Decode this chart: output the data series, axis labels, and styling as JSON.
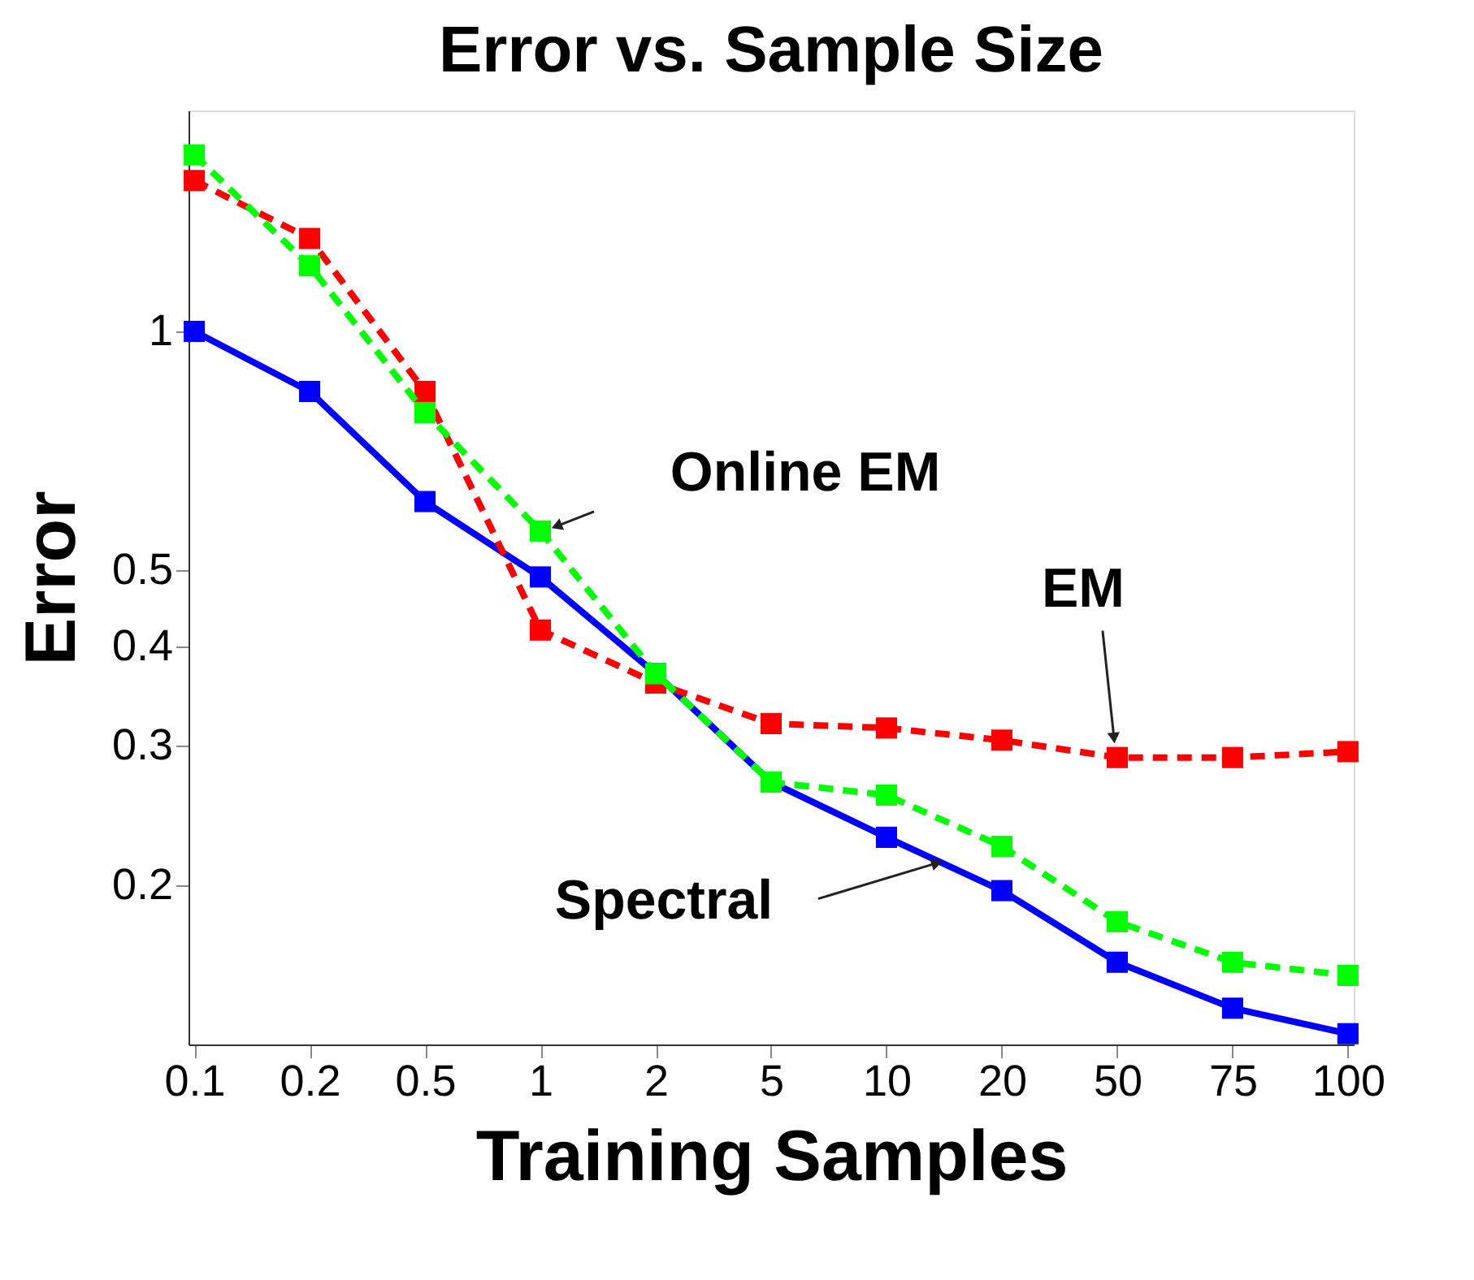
{
  "chart_data": {
    "type": "line",
    "title": "Error vs. Sample Size",
    "xlabel": "Training Samples",
    "ylabel": "Error",
    "categories": [
      "0.1",
      "0.2",
      "0.5",
      "1",
      "2",
      "5",
      "10",
      "20",
      "50",
      "75",
      "100"
    ],
    "series": [
      {
        "name": "Spectral",
        "color": "#0000ff",
        "line_style": "solid",
        "values": [
          1.0,
          0.84,
          0.61,
          0.49,
          0.37,
          0.27,
          0.23,
          0.197,
          0.16,
          0.14,
          0.13
        ]
      },
      {
        "name": "EM",
        "color": "#ff0000",
        "line_style": "dashed",
        "values": [
          1.55,
          1.31,
          0.84,
          0.42,
          0.36,
          0.32,
          0.316,
          0.305,
          0.29,
          0.29,
          0.295
        ]
      },
      {
        "name": "Online EM",
        "color": "#00ff00",
        "line_style": "dashed",
        "values": [
          1.67,
          1.21,
          0.79,
          0.56,
          0.37,
          0.27,
          0.26,
          0.224,
          0.18,
          0.16,
          0.154
        ]
      }
    ],
    "log": "y",
    "ylim": [
      0.126,
      1.9
    ],
    "yticks": [
      0.2,
      0.3,
      0.4,
      0.5,
      1
    ],
    "marker": "square",
    "grid": false
  }
}
